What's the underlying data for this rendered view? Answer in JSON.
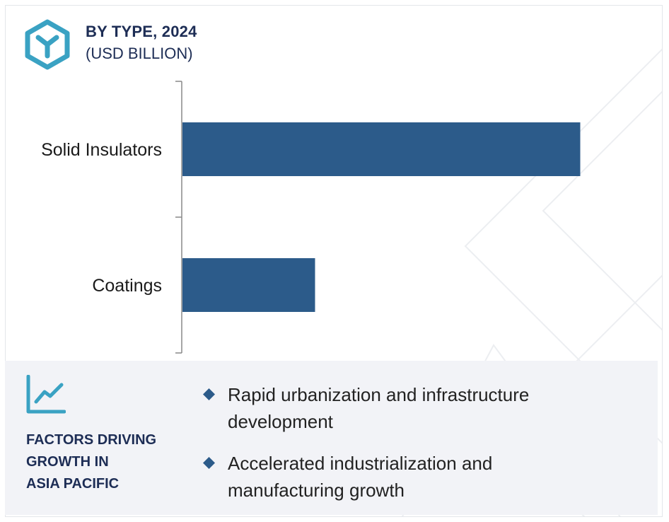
{
  "header": {
    "title": "BY TYPE, 2024",
    "subtitle": "(USD BILLION)",
    "logo_icon": "hexagon-y-icon"
  },
  "chart_data": {
    "type": "bar",
    "orientation": "horizontal",
    "title": "BY TYPE, 2024",
    "subtitle": "(USD BILLION)",
    "categories": [
      "Solid Insulators",
      "Coatings"
    ],
    "values": [
      3.0,
      1.0
    ],
    "xlim": [
      0,
      3.2
    ],
    "grid": false,
    "bar_color": "#2c5b8a"
  },
  "factors": {
    "icon": "trend-chart-icon",
    "title_lines": [
      "FACTORS DRIVING",
      "GROWTH IN",
      "ASIA PACIFIC"
    ],
    "items": [
      {
        "lines": [
          "Rapid urbanization and infrastructure",
          "development"
        ]
      },
      {
        "lines": [
          "Accelerated industrialization and",
          "manufacturing growth"
        ]
      }
    ]
  },
  "colors": {
    "navy": "#1d2d55",
    "accent": "#3aa2c3",
    "bar": "#2c5b8a",
    "panel": "#f2f3f7"
  }
}
